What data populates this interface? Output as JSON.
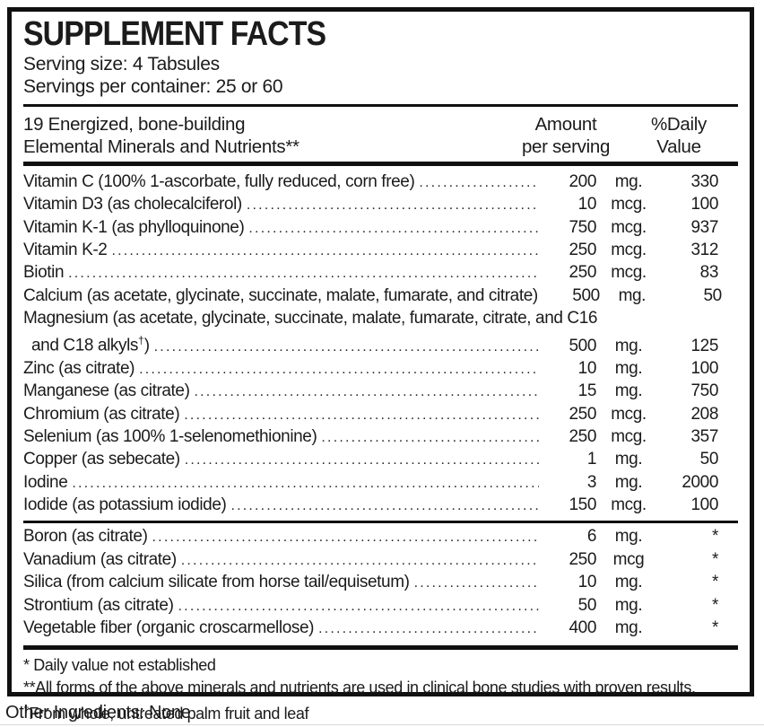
{
  "header": {
    "title": "SUPPLEMENT FACTS",
    "serving_size": "Serving size: 4 Tabsules",
    "servings_per_container": "Servings per container: 25 or 60"
  },
  "columns": {
    "name_line1": "19 Energized, bone-building",
    "name_line2": "Elemental Minerals and Nutrients**",
    "amount_line1": "Amount",
    "amount_line2": "per serving",
    "daily_line1": "%Daily",
    "daily_line2": "Value"
  },
  "main_rows": [
    {
      "name": "Vitamin C (100% 1-ascorbate, fully reduced, corn free)",
      "amount": "200",
      "unit": "mg.",
      "daily": "330"
    },
    {
      "name": "Vitamin D3 (as cholecalciferol)",
      "amount": "10",
      "unit": "mcg.",
      "daily": "100"
    },
    {
      "name": "Vitamin K-1 (as phylloquinone)",
      "amount": "750",
      "unit": "mcg.",
      "daily": "937"
    },
    {
      "name": "Vitamin K-2",
      "amount": "250",
      "unit": "mcg.",
      "daily": "312"
    },
    {
      "name": "Biotin",
      "amount": "250",
      "unit": "mcg.",
      "daily": "83"
    },
    {
      "name": "Calcium (as acetate, glycinate, succinate, malate, fumarate, and citrate)",
      "amount": "500",
      "unit": "mg.",
      "daily": "50"
    },
    {
      "line1": "Magnesium (as acetate, glycinate, succinate, malate, fumarate, citrate, and C16",
      "name": "and C18 alkyls",
      "sup": "†",
      "suffix": ")",
      "amount": "500",
      "unit": "mg.",
      "daily": "125"
    },
    {
      "name": "Zinc (as citrate)",
      "amount": "10",
      "unit": "mg.",
      "daily": "100"
    },
    {
      "name": "Manganese (as citrate)",
      "amount": "15",
      "unit": "mg.",
      "daily": "750"
    },
    {
      "name": "Chromium (as citrate)",
      "amount": "250",
      "unit": "mcg.",
      "daily": "208"
    },
    {
      "name": "Selenium (as 100% 1-selenomethionine)",
      "amount": "250",
      "unit": "mcg.",
      "daily": "357"
    },
    {
      "name": "Copper (as sebecate)",
      "amount": "1",
      "unit": "mg.",
      "daily": "50"
    },
    {
      "name": "Iodine",
      "amount": "3",
      "unit": "mg.",
      "daily": "2000"
    },
    {
      "name": "Iodide (as potassium iodide)",
      "amount": "150",
      "unit": "mcg.",
      "daily": "100"
    }
  ],
  "secondary_rows": [
    {
      "name": "Boron (as citrate)",
      "amount": "6",
      "unit": "mg.",
      "daily": "*"
    },
    {
      "name": "Vanadium (as citrate)",
      "amount": "250",
      "unit": "mcg",
      "daily": "*"
    },
    {
      "name": "Silica (from calcium silicate from horse tail/equisetum)",
      "amount": "10",
      "unit": "mg.",
      "daily": "*"
    },
    {
      "name": "Strontium (as citrate)",
      "amount": "50",
      "unit": "mg.",
      "daily": "*"
    },
    {
      "name": "Vegetable fiber (organic croscarmellose)",
      "amount": "400",
      "unit": "mg.",
      "daily": "*"
    }
  ],
  "footnotes": [
    {
      "sup": "",
      "text": "* Daily value not established"
    },
    {
      "sup": "",
      "text": "**All forms of the above minerals and nutrients are used in clinical bone studies with proven results."
    },
    {
      "sup": "†",
      "text": "From whole, untreated palm fruit and leaf"
    }
  ],
  "other_ingredients": "Other Ingredients: None",
  "colors": {
    "border": "#101010",
    "text": "#1b1b1b"
  }
}
